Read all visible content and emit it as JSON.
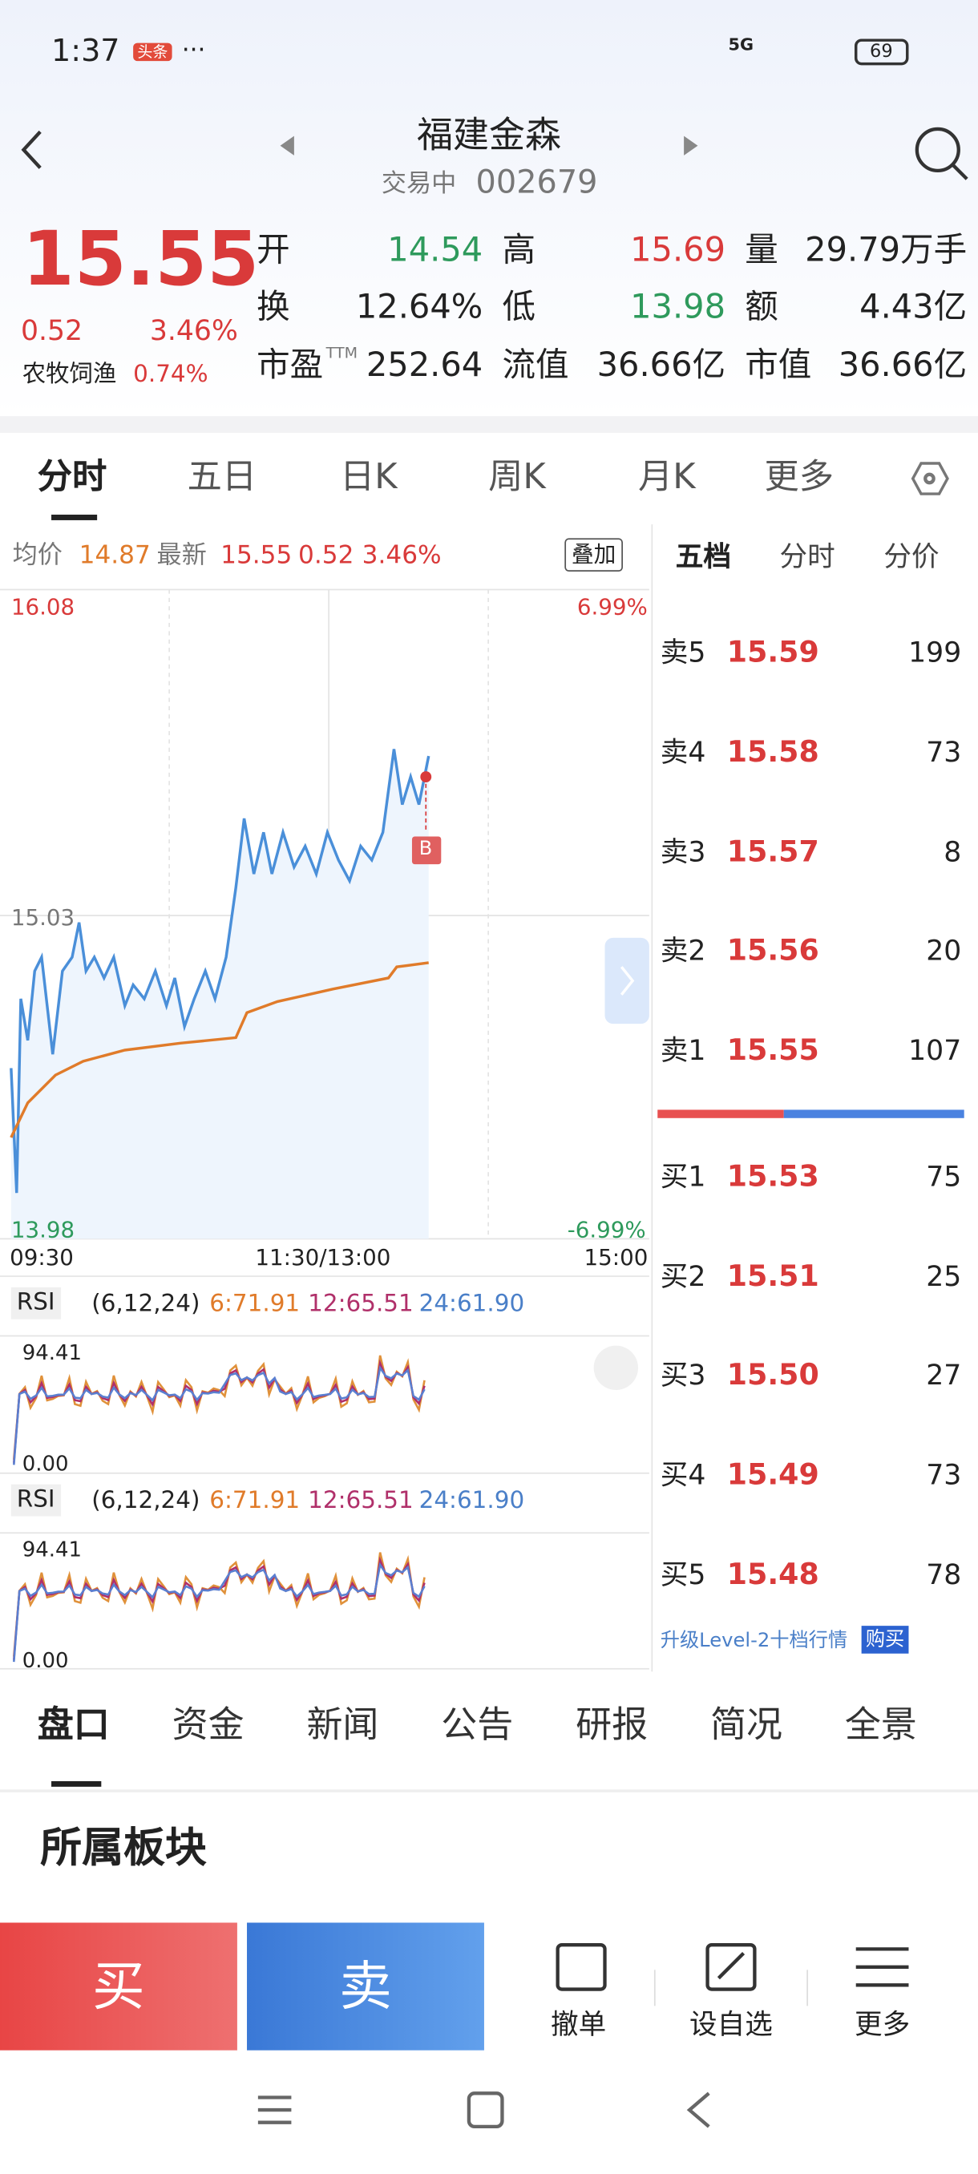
{
  "status": {
    "time": "1:37",
    "badge": "头条",
    "dots": "···",
    "network": "5G",
    "battery": "69"
  },
  "header": {
    "title": "福建金森",
    "state": "交易中",
    "code": "002679"
  },
  "quote": {
    "price": "15.55",
    "change": "0.52",
    "pct": "3.46%",
    "sector": "农牧饲渔",
    "sector_pct": "0.74%"
  },
  "stats": [
    [
      {
        "label": "开",
        "value": "14.54",
        "color": "green"
      },
      {
        "label": "高",
        "value": "15.69",
        "color": "red"
      },
      {
        "label": "量",
        "value": "29.79万手",
        "color": "black"
      }
    ],
    [
      {
        "label": "换",
        "value": "12.64%",
        "color": "black"
      },
      {
        "label": "低",
        "value": "13.98",
        "color": "green"
      },
      {
        "label": "额",
        "value": "4.43亿",
        "color": "black"
      }
    ],
    [
      {
        "label": "市盈",
        "sup": "TTM",
        "value": "252.64",
        "color": "black"
      },
      {
        "label": "流值",
        "value": "36.66亿",
        "color": "black"
      },
      {
        "label": "市值",
        "value": "36.66亿",
        "color": "black"
      }
    ]
  ],
  "tabs": [
    "分时",
    "五日",
    "日K",
    "周K",
    "月K",
    "更多"
  ],
  "chart_info": {
    "avg_label": "均价",
    "avg": "14.87",
    "last_label": "最新",
    "last": "15.55",
    "change": "0.52",
    "pct": "3.46%",
    "overlay": "叠加"
  },
  "axis": {
    "top": "16.08",
    "top_pct": "6.99%",
    "mid": "15.03",
    "bottom": "13.98",
    "bottom_pct": "-6.99%",
    "times": [
      "09:30",
      "11:30/13:00",
      "15:00"
    ],
    "marker": "B"
  },
  "rsi": [
    {
      "name": "RSI",
      "params": "(6,12,24)",
      "r6": "6:71.91",
      "r12": "12:65.51",
      "r24": "24:61.90",
      "max": "94.41",
      "min": "0.00"
    },
    {
      "name": "RSI",
      "params": "(6,12,24)",
      "r6": "6:71.91",
      "r12": "12:65.51",
      "r24": "24:61.90",
      "max": "94.41",
      "min": "0.00"
    }
  ],
  "book": {
    "tabs": [
      "五档",
      "分时",
      "分价"
    ],
    "asks": [
      {
        "label": "卖5",
        "price": "15.59",
        "vol": "199"
      },
      {
        "label": "卖4",
        "price": "15.58",
        "vol": "73"
      },
      {
        "label": "卖3",
        "price": "15.57",
        "vol": "8"
      },
      {
        "label": "卖2",
        "price": "15.56",
        "vol": "20"
      },
      {
        "label": "卖1",
        "price": "15.55",
        "vol": "107"
      }
    ],
    "bids": [
      {
        "label": "买1",
        "price": "15.53",
        "vol": "75"
      },
      {
        "label": "买2",
        "price": "15.51",
        "vol": "25"
      },
      {
        "label": "买3",
        "price": "15.50",
        "vol": "27"
      },
      {
        "label": "买4",
        "price": "15.49",
        "vol": "73"
      },
      {
        "label": "买5",
        "price": "15.48",
        "vol": "78"
      }
    ],
    "upgrade": "升级Level-2十档行情",
    "buy": "购买"
  },
  "bottom_tabs": [
    "盘口",
    "资金",
    "新闻",
    "公告",
    "研报",
    "简况",
    "全景"
  ],
  "section": "所属板块",
  "actions": {
    "buy": "买",
    "sell": "卖",
    "cancel": "撤单",
    "watch": "设自选",
    "more": "更多"
  }
}
